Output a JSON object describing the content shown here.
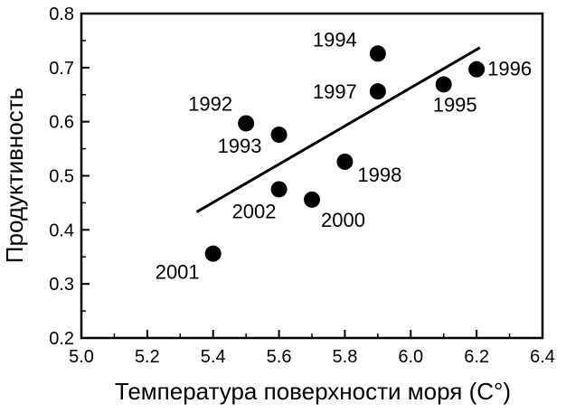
{
  "chart_data": {
    "type": "scatter",
    "title": "",
    "xlabel": "Температура поверхности моря (С°)",
    "ylabel": "Продуктивность",
    "xlim": [
      5.0,
      6.4
    ],
    "ylim": [
      0.2,
      0.8
    ],
    "x_ticks": [
      "5.0",
      "5.2",
      "5.4",
      "5.6",
      "5.8",
      "6.0",
      "6.2",
      "6.4"
    ],
    "y_ticks": [
      "0.2",
      "0.3",
      "0.4",
      "0.5",
      "0.6",
      "0.7",
      "0.8"
    ],
    "grid": false,
    "legend": "none",
    "points": [
      {
        "label": "1992",
        "x": 5.5,
        "y": 0.597
      },
      {
        "label": "1993",
        "x": 5.6,
        "y": 0.576
      },
      {
        "label": "1994",
        "x": 5.9,
        "y": 0.726
      },
      {
        "label": "1995",
        "x": 6.1,
        "y": 0.669
      },
      {
        "label": "1996",
        "x": 6.2,
        "y": 0.697
      },
      {
        "label": "1997",
        "x": 5.9,
        "y": 0.656
      },
      {
        "label": "1998",
        "x": 5.8,
        "y": 0.526
      },
      {
        "label": "2000",
        "x": 5.7,
        "y": 0.456
      },
      {
        "label": "2001",
        "x": 5.4,
        "y": 0.356
      },
      {
        "label": "2002",
        "x": 5.6,
        "y": 0.475
      }
    ],
    "trend_line": {
      "x": [
        5.35,
        6.21
      ],
      "y": [
        0.433,
        0.737
      ]
    }
  }
}
